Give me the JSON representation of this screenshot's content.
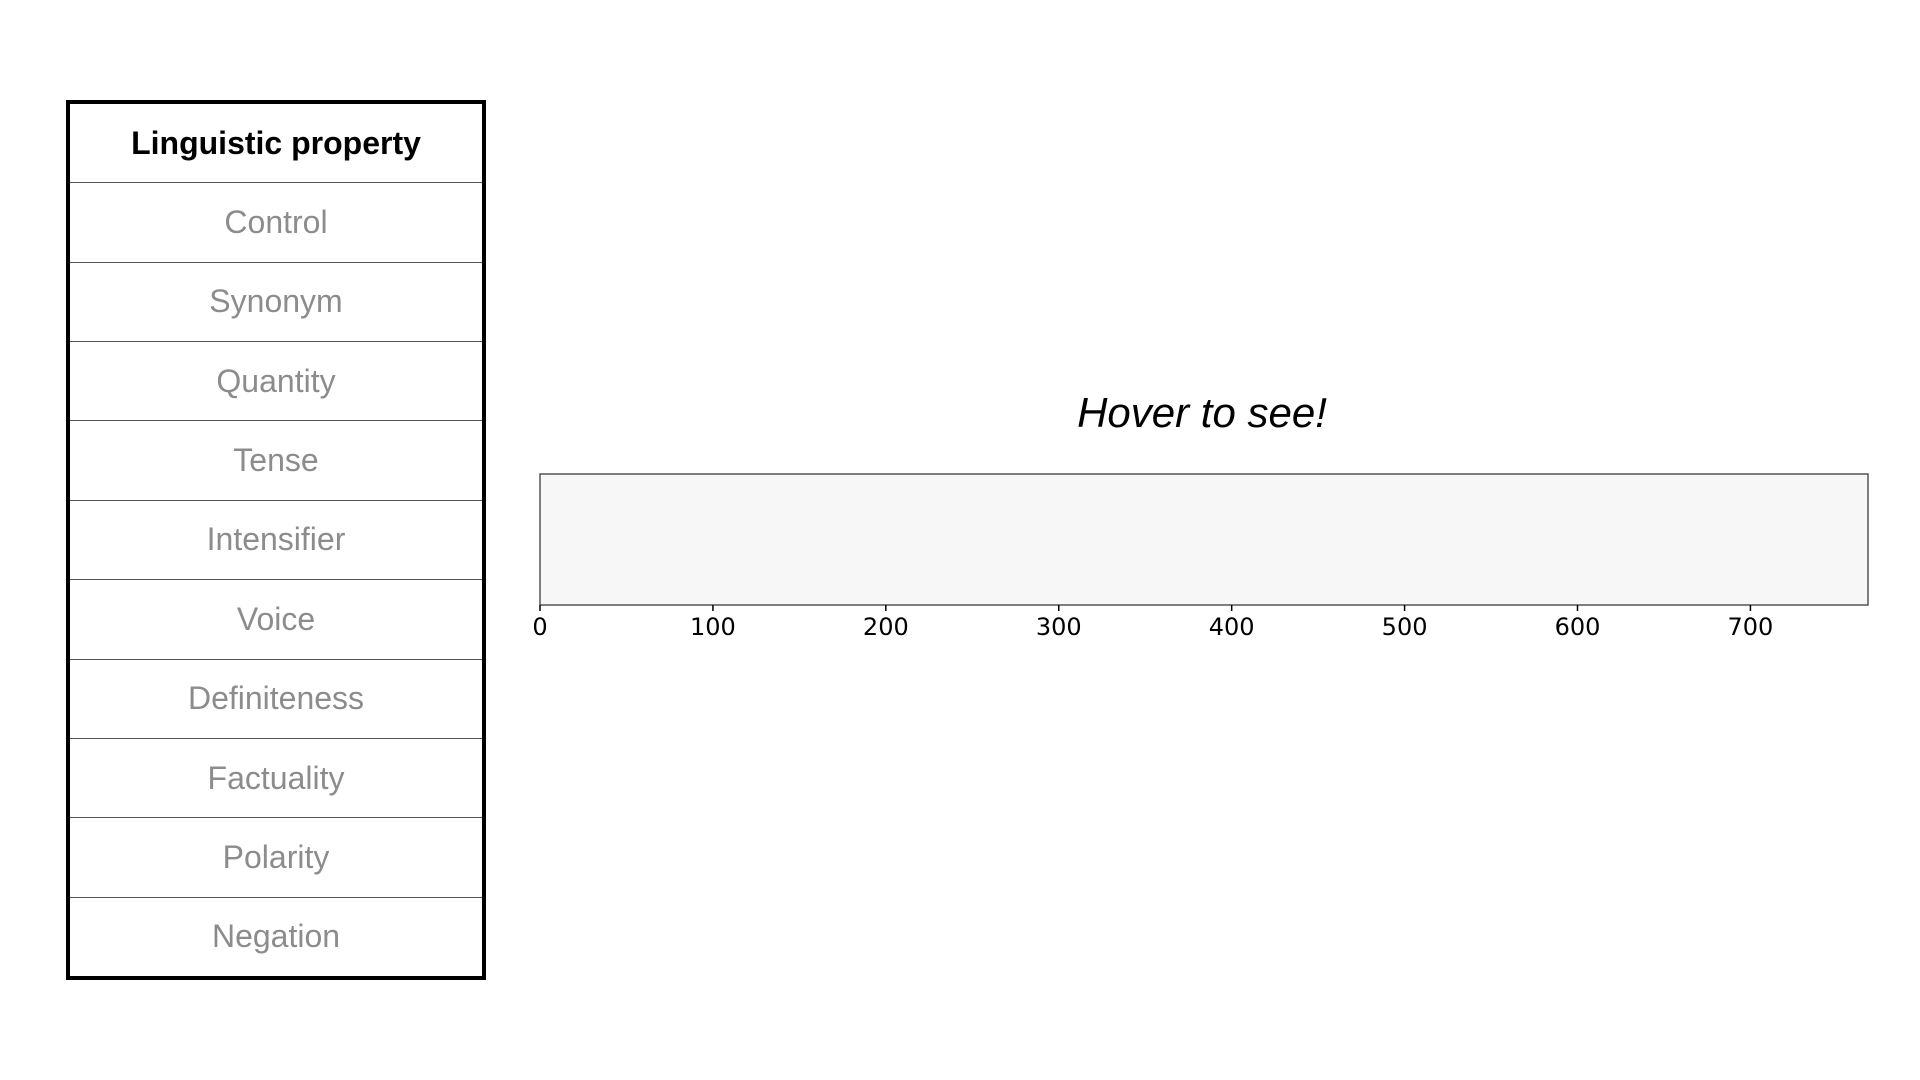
{
  "table": {
    "header": "Linguistic property",
    "items": [
      {
        "label": "Control"
      },
      {
        "label": "Synonym"
      },
      {
        "label": "Quantity"
      },
      {
        "label": "Tense"
      },
      {
        "label": "Intensifier"
      },
      {
        "label": "Voice"
      },
      {
        "label": "Definiteness"
      },
      {
        "label": "Factuality"
      },
      {
        "label": "Polarity"
      },
      {
        "label": "Negation"
      }
    ]
  },
  "heatmap": {
    "title": "Hover to see!"
  },
  "chart_data": {
    "type": "heatmap",
    "title": "Hover to see!",
    "xlabel": "",
    "ylabel": "",
    "xlim": [
      0,
      768
    ],
    "xticks": [
      0,
      100,
      200,
      300,
      400,
      500,
      600,
      700
    ],
    "grid": false,
    "cell_color": "#f7f7f7",
    "border_color": "#555555"
  }
}
